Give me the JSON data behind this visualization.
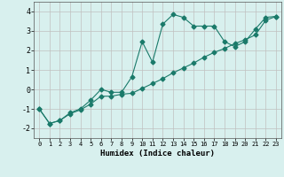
{
  "xlabel": "Humidex (Indice chaleur)",
  "x": [
    0,
    1,
    2,
    3,
    4,
    5,
    6,
    7,
    8,
    9,
    10,
    11,
    12,
    13,
    14,
    15,
    16,
    17,
    18,
    19,
    20,
    21,
    22,
    23
  ],
  "line1_y": [
    -1.0,
    -1.75,
    -1.6,
    -1.2,
    -1.0,
    -0.55,
    0.0,
    -0.15,
    -0.15,
    0.65,
    2.45,
    1.4,
    3.35,
    3.85,
    3.7,
    3.25,
    3.25,
    3.25,
    2.45,
    2.2,
    2.45,
    3.1,
    3.7,
    3.75
  ],
  "line2_y": [
    -1.0,
    -1.75,
    -1.6,
    -1.25,
    -1.05,
    -0.75,
    -0.35,
    -0.35,
    -0.25,
    -0.2,
    0.05,
    0.3,
    0.55,
    0.85,
    1.1,
    1.35,
    1.65,
    1.9,
    2.1,
    2.35,
    2.55,
    2.8,
    3.55,
    3.75
  ],
  "line_color": "#1a7a6a",
  "bg_color": "#d8f0ee",
  "grid_color": "#c0c0c0",
  "ylim": [
    -2.5,
    4.5
  ],
  "xlim": [
    -0.5,
    23.5
  ],
  "yticks": [
    -2,
    -1,
    0,
    1,
    2,
    3,
    4
  ],
  "xticks": [
    0,
    1,
    2,
    3,
    4,
    5,
    6,
    7,
    8,
    9,
    10,
    11,
    12,
    13,
    14,
    15,
    16,
    17,
    18,
    19,
    20,
    21,
    22,
    23
  ],
  "marker": "D",
  "markersize": 2.5,
  "linewidth": 0.8
}
